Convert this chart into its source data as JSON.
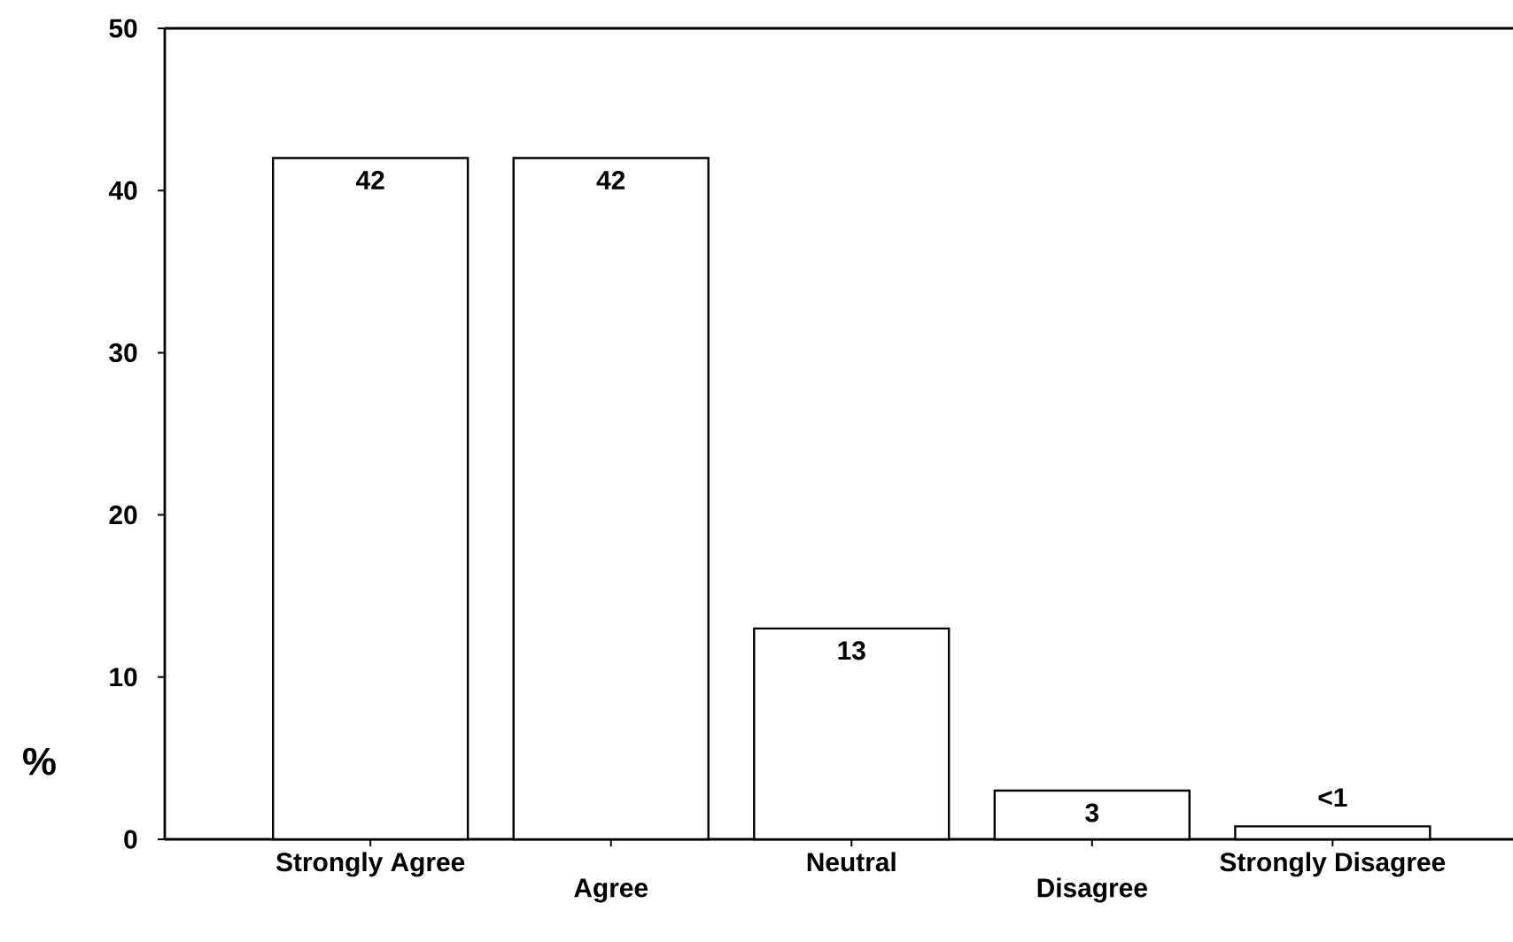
{
  "chart_data": {
    "type": "bar",
    "ylabel": "%",
    "categories": [
      "Strongly Agree",
      "Agree",
      "Neutral",
      "Disagree",
      "Strongly Disagree"
    ],
    "values": [
      42,
      42,
      13,
      3,
      0.8
    ],
    "value_labels": [
      "42",
      "42",
      "13",
      "3",
      "<1"
    ],
    "color": "#ffffff",
    "ylim": [
      0,
      50
    ],
    "yticks": [
      0,
      10,
      20,
      30,
      40,
      50
    ],
    "grid": false
  }
}
